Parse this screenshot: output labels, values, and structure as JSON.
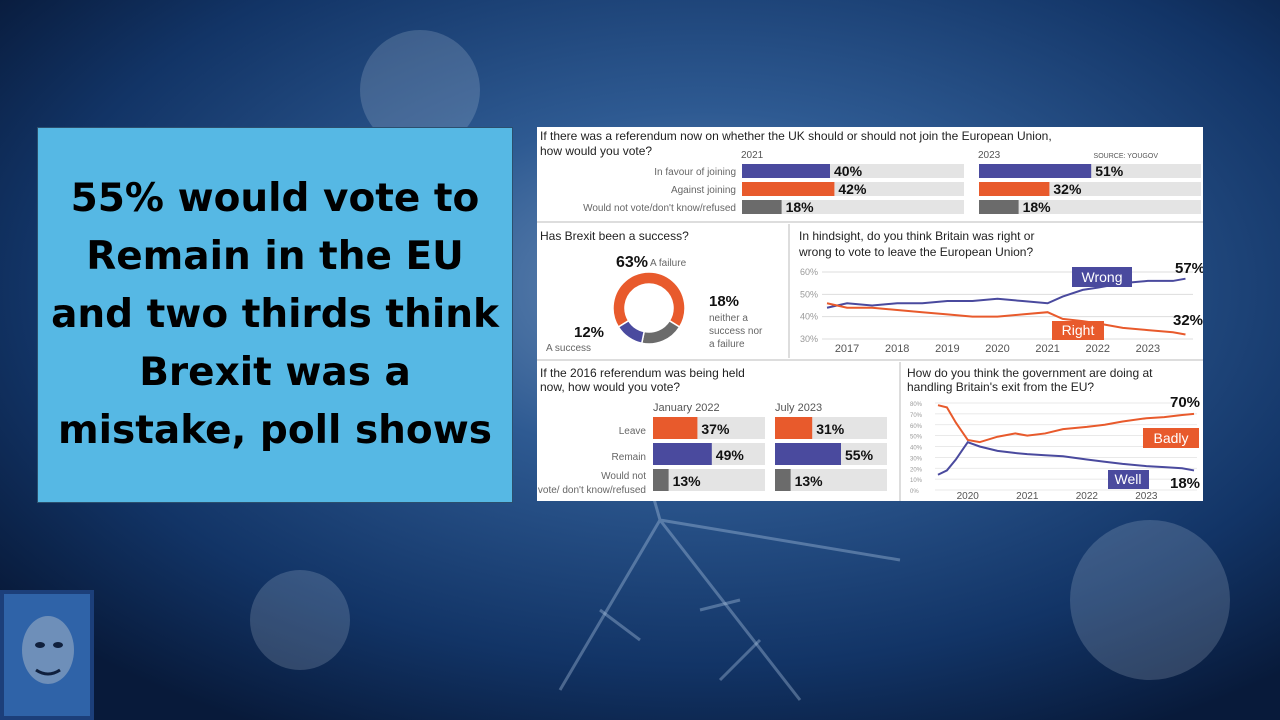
{
  "headline": "55% would vote to Remain in the EU and two thirds think Brexit was a mistake, poll shows",
  "colors": {
    "blue": "#4a4a9e",
    "red": "#e85a2c",
    "grey": "#6b6b6b",
    "track": "#e4e4e4",
    "headline_bg": "#56b8e4"
  },
  "icons": {
    "avatar": "avatar-icon"
  },
  "chart_data": [
    {
      "type": "bar",
      "title": "If there was a referendum now on whether the UK should or should not join the European Union, how would you vote?",
      "source": "SOURCE: YOUGOV",
      "categories": [
        "In favour of joining",
        "Against joining",
        "Would not vote/don't know/refused"
      ],
      "series": [
        {
          "name": "2021",
          "values": [
            40,
            42,
            18
          ],
          "labels": [
            "40%",
            "42%",
            "18%"
          ]
        },
        {
          "name": "2023",
          "values": [
            51,
            32,
            18
          ],
          "labels": [
            "51%",
            "32%",
            "18%"
          ]
        }
      ],
      "unit": "%"
    },
    {
      "type": "pie",
      "title": "Has Brexit been a success?",
      "slices": [
        {
          "label": "A failure",
          "value": 63,
          "value_label": "63%"
        },
        {
          "label": "neither a success nor a failure",
          "value": 18,
          "value_label": "18%"
        },
        {
          "label": "A success",
          "value": 12,
          "value_label": "12%"
        }
      ]
    },
    {
      "type": "line",
      "title": "In hindsight, do you think Britain was right or wrong to vote to leave the European Union?",
      "x_ticks": [
        "2017",
        "2018",
        "2019",
        "2020",
        "2021",
        "2022",
        "2023"
      ],
      "y_ticks": [
        "60%",
        "50%",
        "40%",
        "30%"
      ],
      "xlim": [
        2016.5,
        2023.9
      ],
      "ylim": [
        30,
        60
      ],
      "series": [
        {
          "name": "Wrong",
          "end_label": "57%",
          "x": [
            2016.6,
            2017.0,
            2017.5,
            2018.0,
            2018.5,
            2019.0,
            2019.5,
            2020.0,
            2020.5,
            2021.0,
            2021.3,
            2021.7,
            2022.0,
            2022.5,
            2023.0,
            2023.5,
            2023.75
          ],
          "y": [
            44,
            46,
            45,
            46,
            46,
            47,
            47,
            48,
            47,
            46,
            49,
            52,
            53,
            55,
            56,
            56,
            57
          ]
        },
        {
          "name": "Right",
          "end_label": "32%",
          "x": [
            2016.6,
            2017.0,
            2017.5,
            2018.0,
            2018.5,
            2019.0,
            2019.5,
            2020.0,
            2020.5,
            2021.0,
            2021.3,
            2021.7,
            2022.0,
            2022.5,
            2023.0,
            2023.5,
            2023.75
          ],
          "y": [
            46,
            44,
            44,
            43,
            42,
            41,
            40,
            40,
            41,
            42,
            39,
            38,
            37,
            35,
            34,
            33,
            32
          ]
        }
      ]
    },
    {
      "type": "bar",
      "title": "If the 2016 referendum was being held now, how would you vote?",
      "categories": [
        "Leave",
        "Remain",
        "Would not vote/ don't know/refused"
      ],
      "series": [
        {
          "name": "January 2022",
          "values": [
            37,
            49,
            13
          ],
          "labels": [
            "37%",
            "49%",
            "13%"
          ]
        },
        {
          "name": "July 2023",
          "values": [
            31,
            55,
            13
          ],
          "labels": [
            "31%",
            "55%",
            "13%"
          ]
        }
      ],
      "unit": "%"
    },
    {
      "type": "line",
      "title": "How do you think the government are doing at handling Britain's exit from the EU?",
      "x_ticks": [
        "2020",
        "2021",
        "2022",
        "2023"
      ],
      "y_ticks": [
        "80%",
        "70%",
        "60%",
        "50%",
        "40%",
        "30%",
        "20%",
        "10%",
        "0%"
      ],
      "xlim": [
        2019.45,
        2023.85
      ],
      "ylim": [
        0,
        80
      ],
      "series": [
        {
          "name": "Badly",
          "end_label": "70%",
          "x": [
            2019.5,
            2019.65,
            2019.8,
            2019.9,
            2020.0,
            2020.2,
            2020.5,
            2020.8,
            2021.0,
            2021.3,
            2021.6,
            2022.0,
            2022.3,
            2022.6,
            2023.0,
            2023.3,
            2023.6,
            2023.8
          ],
          "y": [
            78,
            76,
            62,
            54,
            46,
            44,
            49,
            52,
            50,
            52,
            56,
            58,
            60,
            63,
            66,
            67,
            69,
            70
          ]
        },
        {
          "name": "Well",
          "end_label": "18%",
          "x": [
            2019.5,
            2019.65,
            2019.8,
            2019.9,
            2020.0,
            2020.2,
            2020.5,
            2020.8,
            2021.0,
            2021.3,
            2021.6,
            2022.0,
            2022.3,
            2022.6,
            2023.0,
            2023.3,
            2023.6,
            2023.8
          ],
          "y": [
            14,
            18,
            28,
            36,
            44,
            40,
            36,
            34,
            33,
            32,
            31,
            28,
            26,
            24,
            22,
            21,
            20,
            18
          ]
        }
      ]
    }
  ]
}
